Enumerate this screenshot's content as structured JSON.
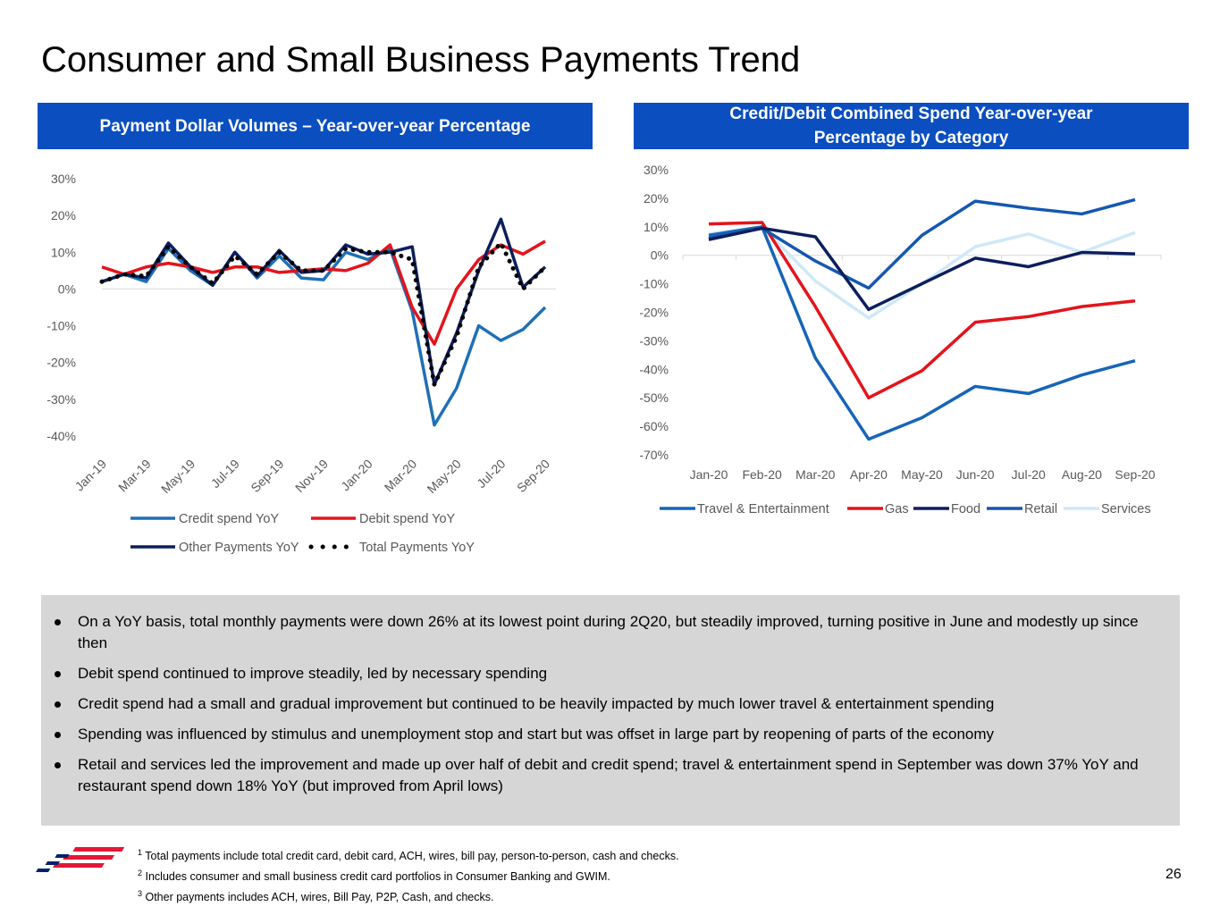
{
  "page": {
    "title": "Consumer and Small Business Payments Trend",
    "page_number": "26"
  },
  "left_panel": {
    "header": "Payment Dollar Volumes – Year-over-year Percentage"
  },
  "right_panel": {
    "header_line1": "Credit/Debit Combined Spend Year-over-year",
    "header_line2": "Percentage by Category"
  },
  "chart_data": [
    {
      "type": "line",
      "title": "Payment Dollar Volumes – Year-over-year Percentage",
      "x": [
        "Jan-19",
        "Feb-19",
        "Mar-19",
        "Apr-19",
        "May-19",
        "Jun-19",
        "Jul-19",
        "Aug-19",
        "Sep-19",
        "Oct-19",
        "Nov-19",
        "Dec-19",
        "Jan-20",
        "Feb-20",
        "Mar-20",
        "Apr-20",
        "May-20",
        "Jun-20",
        "Jul-20",
        "Aug-20",
        "Sep-20"
      ],
      "x_tick_labels": [
        "Jan-19",
        "Mar-19",
        "May-19",
        "Jul-19",
        "Sep-19",
        "Nov-19",
        "Jan-20",
        "Mar-20",
        "May-20",
        "Jul-20",
        "Sep-20"
      ],
      "y_tick_labels": [
        "30%",
        "20%",
        "10%",
        "0%",
        "-10%",
        "-20%",
        "-30%",
        "-40%"
      ],
      "ylim": [
        -40,
        30
      ],
      "grid": false,
      "legend_position": "bottom",
      "series": [
        {
          "name": "Credit spend YoY",
          "color": "#1f6fb5",
          "style": "solid",
          "values": [
            2,
            4,
            2,
            11,
            5,
            1,
            10,
            3,
            9,
            3,
            2.5,
            10,
            8,
            11,
            -6,
            -37,
            -27,
            -10,
            -14,
            -11,
            -5
          ]
        },
        {
          "name": "Debit spend YoY",
          "color": "#e3141b",
          "style": "solid",
          "values": [
            6,
            4,
            6,
            7,
            6,
            4.5,
            6,
            6,
            4.5,
            5,
            5.5,
            5,
            7,
            12,
            -5,
            -15,
            0,
            8,
            12,
            9.5,
            13
          ]
        },
        {
          "name": "Other Payments YoY",
          "color": "#0c1f5c",
          "style": "solid",
          "values": [
            2,
            4,
            3,
            12.5,
            6,
            1,
            10,
            3.5,
            10.5,
            4.5,
            5,
            12,
            9.5,
            10,
            11.5,
            -26,
            -12,
            5,
            19,
            0.5,
            6
          ]
        },
        {
          "name": "Total Payments YoY",
          "color": "#000000",
          "style": "dotted",
          "values": [
            2,
            4,
            3.5,
            11.5,
            6,
            1.5,
            9,
            4,
            10,
            5,
            5,
            11,
            10,
            10,
            8,
            -26,
            -13,
            6,
            12.5,
            0,
            6
          ]
        }
      ]
    },
    {
      "type": "line",
      "title": "Credit/Debit Combined Spend Year-over-year Percentage by Category",
      "x": [
        "Jan-20",
        "Feb-20",
        "Mar-20",
        "Apr-20",
        "May-20",
        "Jun-20",
        "Jul-20",
        "Aug-20",
        "Sep-20"
      ],
      "y_tick_labels": [
        "30%",
        "20%",
        "10%",
        "0%",
        "-10%",
        "-20%",
        "-30%",
        "-40%",
        "-50%",
        "-60%",
        "-70%"
      ],
      "ylim": [
        -70,
        30
      ],
      "grid": false,
      "legend_position": "bottom",
      "series": [
        {
          "name": "Travel & Entertainment",
          "color": "#1565b8",
          "values": [
            7,
            10,
            -36,
            -64.5,
            -57,
            -46,
            -48.5,
            -42,
            -37
          ]
        },
        {
          "name": "Gas",
          "color": "#e3141b",
          "values": [
            11,
            11.5,
            -18,
            -50,
            -40.5,
            -23.5,
            -21.5,
            -18,
            -16
          ]
        },
        {
          "name": "Food",
          "color": "#0c1f5c",
          "values": [
            5.5,
            9.5,
            6.5,
            -19,
            -10,
            -1,
            -4,
            1,
            0.5
          ]
        },
        {
          "name": "Retail",
          "color": "#1557b0",
          "values": [
            6,
            9.5,
            -2,
            -11.5,
            7,
            19,
            16.5,
            14.5,
            19.5
          ]
        },
        {
          "name": "Services",
          "color": "#cfe8f8",
          "values": [
            7.5,
            10,
            -9,
            -22,
            -10,
            3,
            7.5,
            1,
            8
          ]
        }
      ]
    }
  ],
  "bullets": [
    "On a YoY basis, total monthly payments were down 26% at its lowest point during 2Q20, but steadily improved, turning positive in June and modestly up since then",
    "Debit spend continued to improve steadily, led by necessary spending",
    "Credit spend had a small and gradual improvement but continued to be heavily impacted by much lower travel & entertainment  spending",
    "Spending was influenced by stimulus and unemployment stop and start but was offset in large part by reopening of parts of the economy",
    "Retail and services led the improvement and made up over half of debit and credit spend; travel & entertainment spend in September was down 37% YoY and restaurant spend down 18% YoY (but improved from April lows)"
  ],
  "footnotes": [
    {
      "mark": "1",
      "text": "Total payments include total credit card, debit card, ACH, wires, bill pay, person-to-person, cash and checks."
    },
    {
      "mark": "2",
      "text": "Includes consumer and small business credit card portfolios in Consumer Banking and GWIM."
    },
    {
      "mark": "3",
      "text": "Other payments includes ACH, wires, Bill Pay, P2P, Cash, and checks."
    }
  ],
  "logo": {
    "icon": "bank-flag-logo",
    "colors": [
      "#e31837",
      "#012169"
    ]
  }
}
